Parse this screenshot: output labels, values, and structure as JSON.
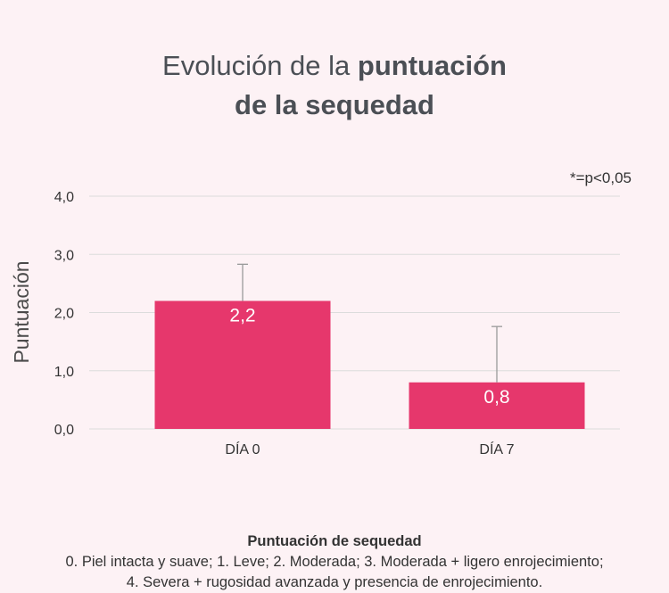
{
  "title": {
    "prefix": "Evolución de la",
    "bold1": "puntuación",
    "line2": "de la sequedad"
  },
  "annotation": "*=p<0,05",
  "legend": {
    "title": "Puntuación de sequedad",
    "line1": "0. Piel intacta y suave; 1. Leve; 2. Moderada; 3. Moderada + ligero enrojecimiento;",
    "line2": "4. Severa + rugosidad avanzada y presencia de enrojecimiento."
  },
  "colors": {
    "bar": "#e6376c",
    "grid": "#dcdcdc",
    "error": "#9a9a9a"
  },
  "chart_data": {
    "type": "bar",
    "categories": [
      "DÍA 0",
      "DÍA 7"
    ],
    "values": [
      2.2,
      0.8
    ],
    "value_labels": [
      "2,2",
      "0,8"
    ],
    "error_upper": [
      2.83,
      1.76
    ],
    "ylabel": "Puntuación",
    "ylim": [
      0,
      4
    ],
    "yticks": [
      0,
      1,
      2,
      3,
      4
    ],
    "ytick_labels": [
      "0,0",
      "1,0",
      "2,0",
      "3,0",
      "4,0"
    ],
    "grid": true
  }
}
